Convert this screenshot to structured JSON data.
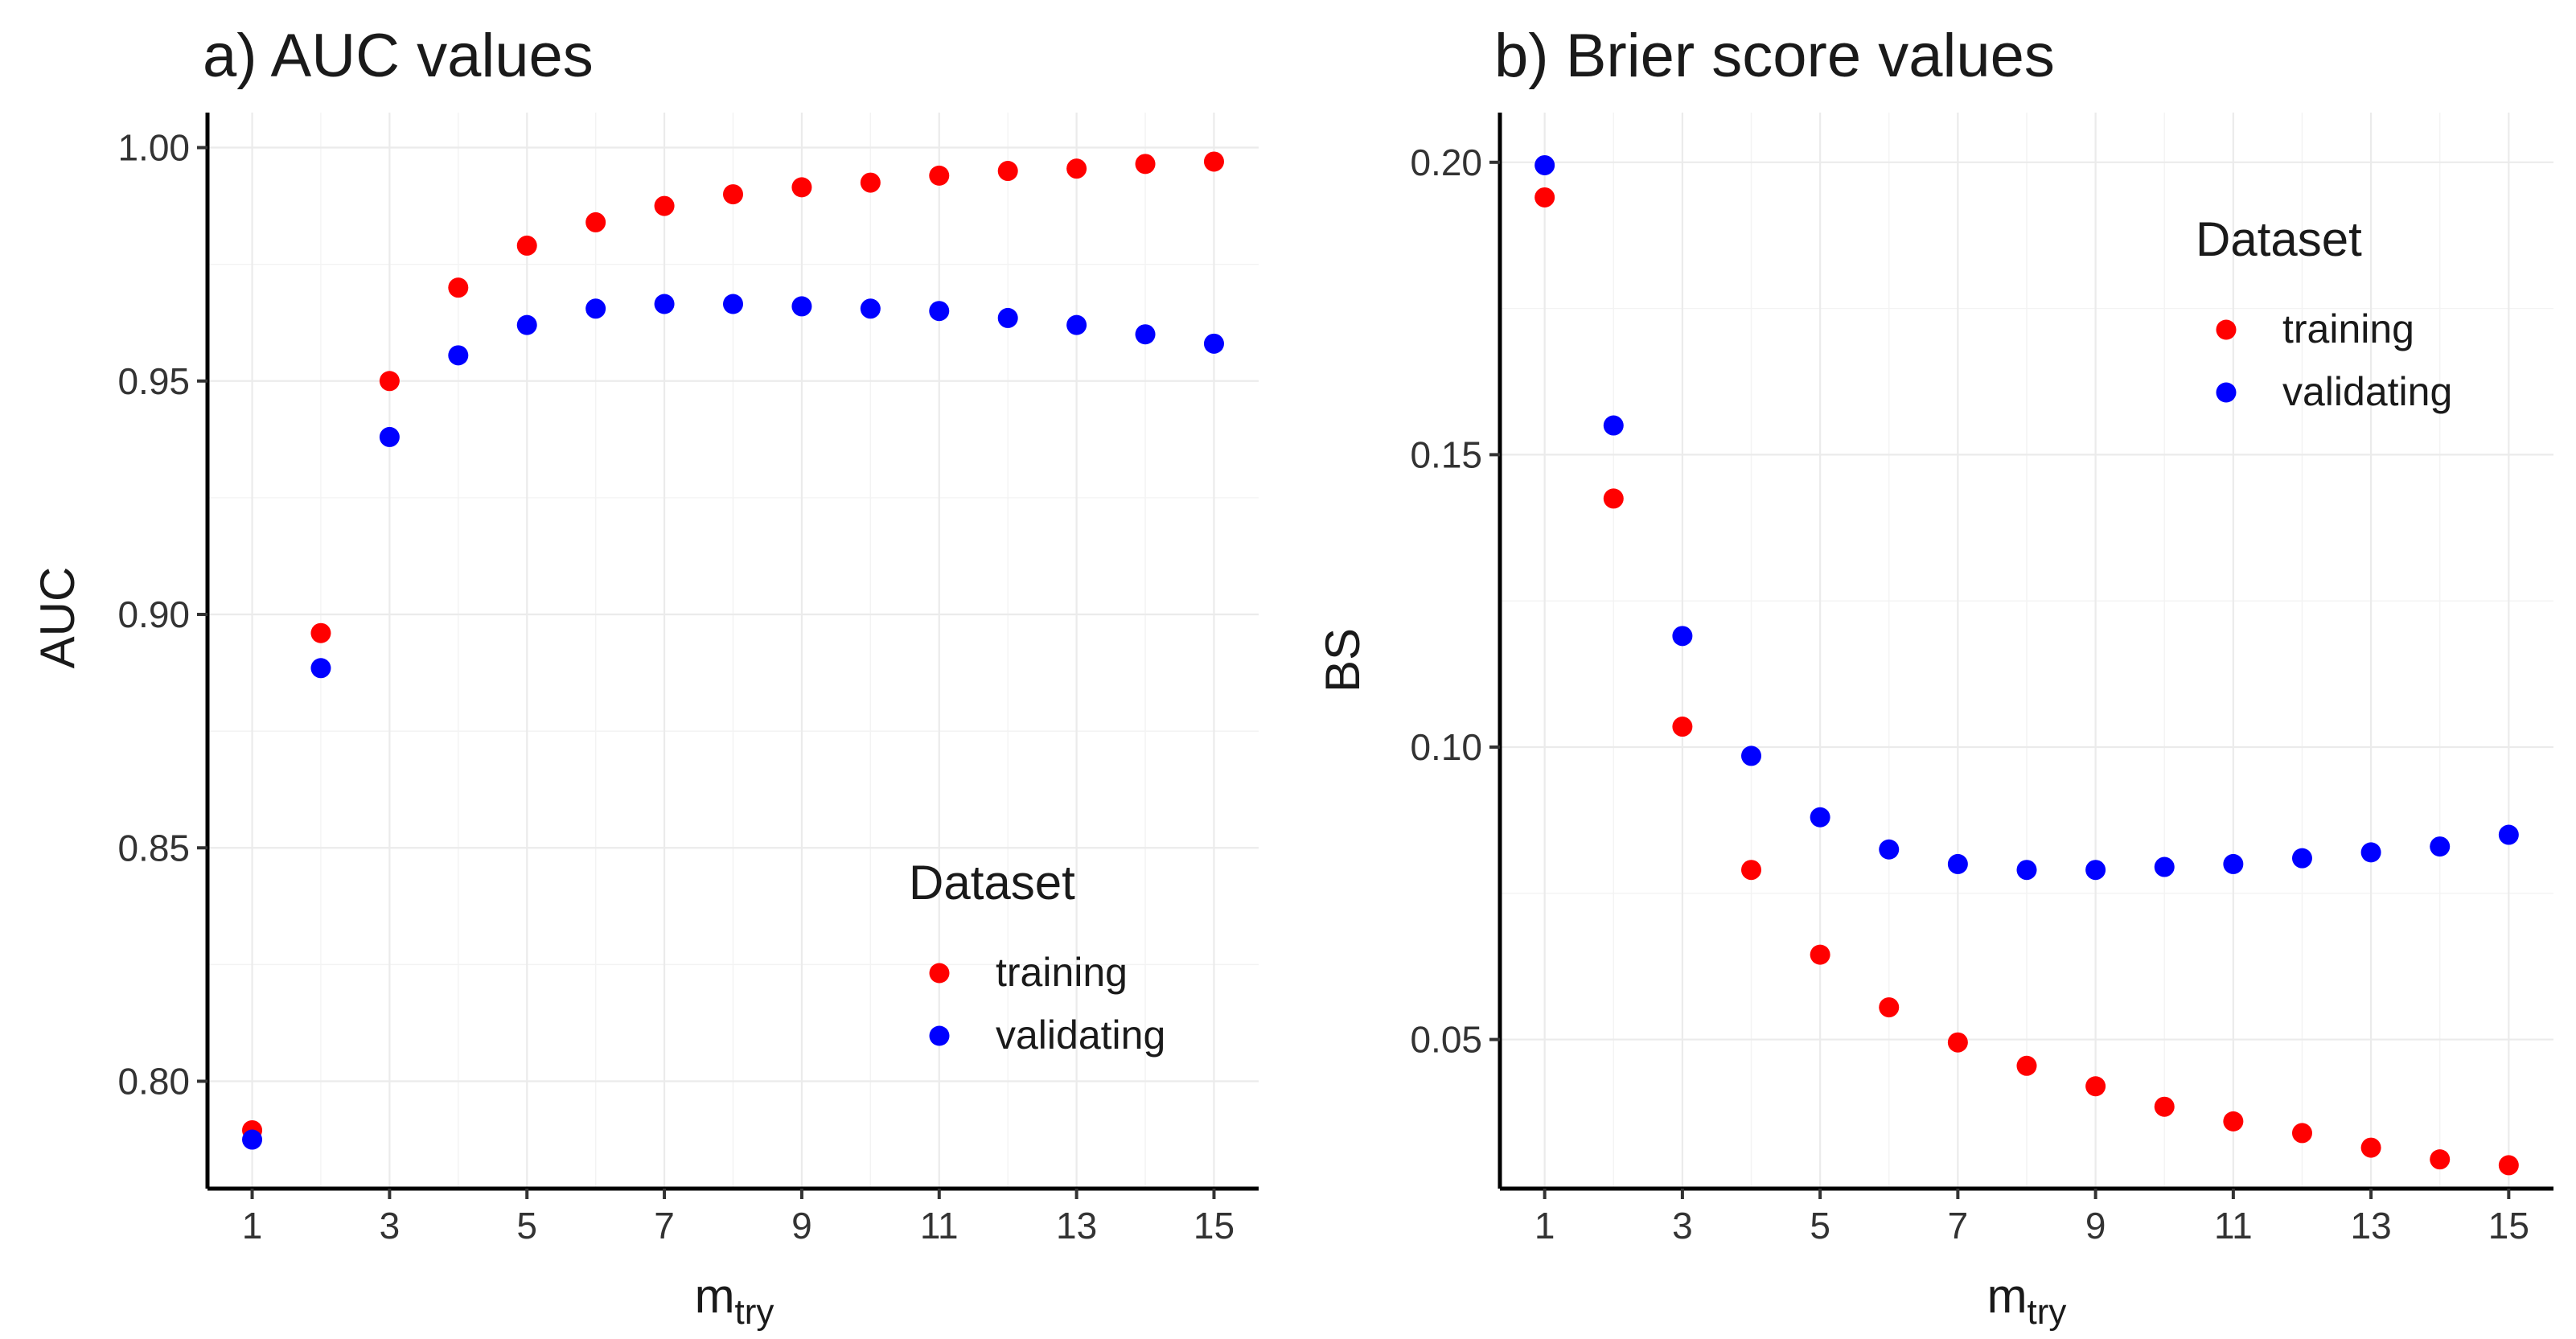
{
  "chart_data": [
    {
      "type": "scatter",
      "title": "a) AUC values",
      "xlabel": "m",
      "xlabel_sub": "try",
      "ylabel": "AUC",
      "xlim": [
        0.35,
        15.65
      ],
      "ylim": [
        0.777,
        1.0075
      ],
      "xticks": [
        1,
        3,
        5,
        7,
        9,
        11,
        13,
        15
      ],
      "xminor": [
        2,
        4,
        6,
        8,
        10,
        12,
        14
      ],
      "yticks": [
        0.8,
        0.85,
        0.9,
        0.95,
        1.0
      ],
      "ytick_labels": [
        "0.80",
        "0.85",
        "0.90",
        "0.95",
        "1.00"
      ],
      "yminor": [
        0.825,
        0.875,
        0.925,
        0.975
      ],
      "legend": {
        "title": "Dataset",
        "position": "bottom-right",
        "items": [
          {
            "label": "training",
            "color": "#ff0000"
          },
          {
            "label": "validating",
            "color": "#0000ff"
          }
        ]
      },
      "x": [
        1,
        2,
        3,
        4,
        5,
        6,
        7,
        8,
        9,
        10,
        11,
        12,
        13,
        14,
        15
      ],
      "series": [
        {
          "name": "training",
          "color": "#ff0000",
          "values": [
            0.7895,
            0.896,
            0.95,
            0.97,
            0.979,
            0.984,
            0.9875,
            0.99,
            0.9915,
            0.9925,
            0.994,
            0.995,
            0.9955,
            0.9965,
            0.997
          ]
        },
        {
          "name": "validating",
          "color": "#0000ff",
          "values": [
            0.7875,
            0.8885,
            0.938,
            0.9555,
            0.962,
            0.9655,
            0.9665,
            0.9665,
            0.966,
            0.9655,
            0.965,
            0.9635,
            0.962,
            0.96,
            0.958
          ]
        }
      ]
    },
    {
      "type": "scatter",
      "title": "b) Brier score values",
      "xlabel": "m",
      "xlabel_sub": "try",
      "ylabel": "BS",
      "xlim": [
        0.35,
        15.65
      ],
      "ylim": [
        0.0245,
        0.2085
      ],
      "xticks": [
        1,
        3,
        5,
        7,
        9,
        11,
        13,
        15
      ],
      "xminor": [
        2,
        4,
        6,
        8,
        10,
        12,
        14
      ],
      "yticks": [
        0.05,
        0.1,
        0.15,
        0.2
      ],
      "ytick_labels": [
        "0.05",
        "0.10",
        "0.15",
        "0.20"
      ],
      "yminor": [
        0.025,
        0.075,
        0.125,
        0.175
      ],
      "legend": {
        "title": "Dataset",
        "position": "top-right",
        "items": [
          {
            "label": "training",
            "color": "#ff0000"
          },
          {
            "label": "validating",
            "color": "#0000ff"
          }
        ]
      },
      "x": [
        1,
        2,
        3,
        4,
        5,
        6,
        7,
        8,
        9,
        10,
        11,
        12,
        13,
        14,
        15
      ],
      "series": [
        {
          "name": "training",
          "color": "#ff0000",
          "values": [
            0.194,
            0.1425,
            0.1035,
            0.079,
            0.0645,
            0.0555,
            0.0495,
            0.0455,
            0.042,
            0.0385,
            0.036,
            0.034,
            0.0315,
            0.0295,
            0.0285
          ]
        },
        {
          "name": "validating",
          "color": "#0000ff",
          "values": [
            0.1995,
            0.155,
            0.119,
            0.0985,
            0.088,
            0.0825,
            0.08,
            0.079,
            0.079,
            0.0795,
            0.08,
            0.081,
            0.082,
            0.083,
            0.085
          ]
        }
      ]
    }
  ]
}
